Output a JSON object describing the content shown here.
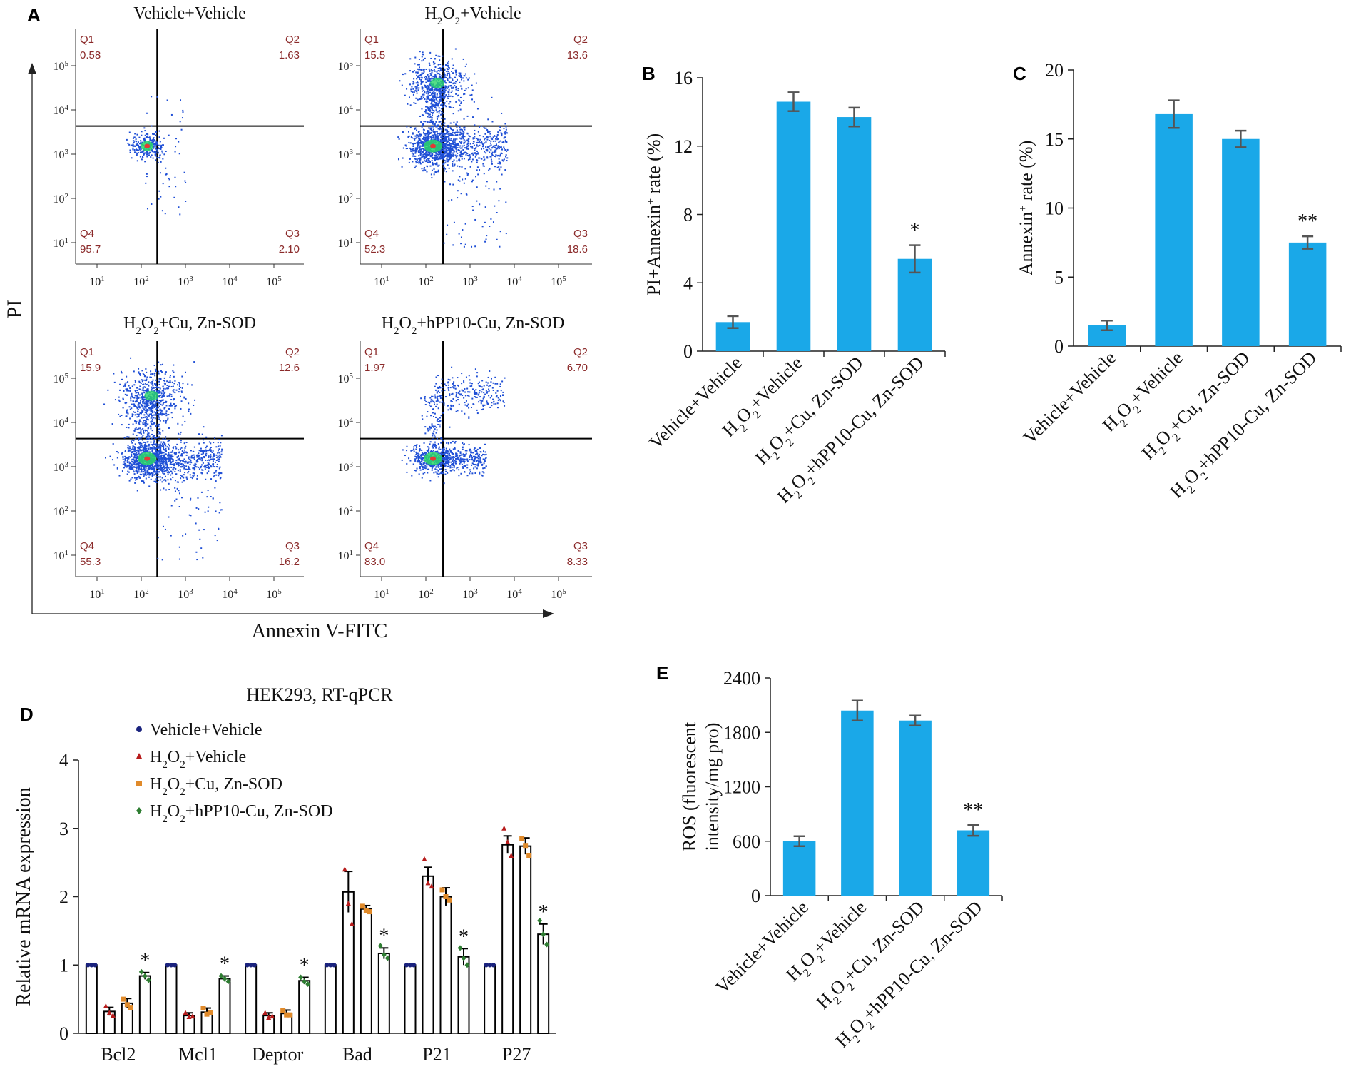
{
  "figure": {
    "panel_labels": [
      "A",
      "B",
      "C",
      "D",
      "E"
    ]
  },
  "colors": {
    "bar": "#1aa8e8",
    "error": "#555555",
    "quadrant_text": "#8b2a2a",
    "veh": "#1a237e",
    "h2o2": "#b71c1c",
    "cu": "#e08a2a",
    "hpp": "#2e7d32",
    "axis": "#222222"
  },
  "flow": {
    "ylabel": "PI",
    "xlabel": "Annexin V-FITC",
    "tick_labels": [
      "10",
      "10",
      "10",
      "10",
      "10"
    ],
    "tick_exponents": [
      "1",
      "2",
      "3",
      "4",
      "5"
    ],
    "quadrant_names": [
      "Q1",
      "Q2",
      "Q3",
      "Q4"
    ],
    "plots": [
      {
        "title_parts": [
          "Vehicle+Vehicle"
        ],
        "q1": "0.58",
        "q2": "1.63",
        "q3": "2.10",
        "q4": "95.7",
        "pattern": "low"
      },
      {
        "title_parts": [
          "H",
          "2",
          "O",
          "2",
          "+Vehicle"
        ],
        "q1": "15.5",
        "q2": "13.6",
        "q3": "18.6",
        "q4": "52.3",
        "pattern": "high"
      },
      {
        "title_parts": [
          "H",
          "2",
          "O",
          "2",
          "+Cu, Zn-SOD"
        ],
        "q1": "15.9",
        "q2": "12.6",
        "q3": "16.2",
        "q4": "55.3",
        "pattern": "high"
      },
      {
        "title_parts": [
          "H",
          "2",
          "O",
          "2",
          "+hPP10-Cu, Zn-SOD"
        ],
        "q1": "1.97",
        "q2": "6.70",
        "q3": "8.33",
        "q4": "83.0",
        "pattern": "mid"
      }
    ]
  },
  "group_labels": [
    [
      "Vehicle+Vehicle"
    ],
    [
      "H",
      "2",
      "O",
      "2",
      "+Vehicle"
    ],
    [
      "H",
      "2",
      "O",
      "2",
      "+Cu, Zn-SOD"
    ],
    [
      "H",
      "2",
      "O",
      "2",
      "+hPP10-Cu, Zn-SOD"
    ]
  ],
  "chart_data": [
    {
      "panel": "B",
      "type": "bar",
      "categories": [
        "Vehicle+Vehicle",
        "H2O2+Vehicle",
        "H2O2+Cu, Zn-SOD",
        "H2O2+hPP10-Cu, Zn-SOD"
      ],
      "values": [
        1.7,
        14.6,
        13.7,
        5.4
      ],
      "errors": [
        0.35,
        0.55,
        0.55,
        0.8
      ],
      "annotations": [
        "",
        "",
        "",
        "*"
      ],
      "ylabel_parts": [
        "PI+Annexin",
        "+",
        " rate (%)"
      ],
      "ylim": [
        0,
        16
      ],
      "yticks": [
        0,
        4,
        8,
        12,
        16
      ]
    },
    {
      "panel": "C",
      "type": "bar",
      "categories": [
        "Vehicle+Vehicle",
        "H2O2+Vehicle",
        "H2O2+Cu, Zn-SOD",
        "H2O2+hPP10-Cu, Zn-SOD"
      ],
      "values": [
        1.5,
        16.8,
        15.0,
        7.5
      ],
      "errors": [
        0.35,
        1.0,
        0.6,
        0.45
      ],
      "annotations": [
        "",
        "",
        "",
        "**"
      ],
      "ylabel_parts": [
        "Annexin",
        "+",
        " rate (%)"
      ],
      "ylim": [
        0,
        20
      ],
      "yticks": [
        0,
        5,
        10,
        15,
        20
      ]
    },
    {
      "panel": "D",
      "type": "bar",
      "title": "HEK293, RT-qPCR",
      "ylabel": "Relative mRNA expression",
      "ylim": [
        0,
        4
      ],
      "yticks": [
        0,
        1,
        2,
        3,
        4
      ],
      "categories": [
        "Bcl2",
        "Mcl1",
        "Deptor",
        "Bad",
        "P21",
        "P27"
      ],
      "legend": [
        {
          "parts": [
            "Vehicle+Vehicle"
          ]
        },
        {
          "parts": [
            "H",
            "2",
            "O",
            "2",
            "+Vehicle"
          ]
        },
        {
          "parts": [
            "H",
            "2",
            "O",
            "2",
            "+Cu, Zn-SOD"
          ]
        },
        {
          "parts": [
            "H",
            "2",
            "O",
            "2",
            "+hPP10-Cu, Zn-SOD"
          ]
        }
      ],
      "series": [
        {
          "values": [
            1.0,
            1.0,
            1.0,
            1.0,
            1.0,
            1.0
          ],
          "errors": [
            0,
            0,
            0,
            0,
            0,
            0
          ]
        },
        {
          "values": [
            0.32,
            0.26,
            0.26,
            2.07,
            2.3,
            2.76
          ],
          "errors": [
            0.06,
            0.04,
            0.04,
            0.3,
            0.13,
            0.13
          ]
        },
        {
          "values": [
            0.44,
            0.31,
            0.29,
            1.82,
            2.0,
            2.74
          ],
          "errors": [
            0.07,
            0.06,
            0.05,
            0.05,
            0.13,
            0.12
          ]
        },
        {
          "values": [
            0.84,
            0.8,
            0.77,
            1.17,
            1.12,
            1.45
          ],
          "errors": [
            0.05,
            0.04,
            0.05,
            0.08,
            0.12,
            0.15
          ]
        }
      ],
      "points": [
        [
          [
            1,
            1,
            1
          ],
          [
            1,
            1,
            1
          ],
          [
            1,
            1,
            1
          ],
          [
            1,
            1,
            1
          ],
          [
            1,
            1,
            1
          ],
          [
            1,
            1,
            1
          ]
        ],
        [
          [
            0.4,
            0.3,
            0.26
          ],
          [
            0.3,
            0.24,
            0.25
          ],
          [
            0.3,
            0.23,
            0.25
          ],
          [
            2.4,
            1.9,
            1.6
          ],
          [
            2.55,
            2.2,
            2.15
          ],
          [
            3.0,
            2.8,
            2.6
          ]
        ],
        [
          [
            0.5,
            0.42,
            0.38
          ],
          [
            0.37,
            0.28,
            0.3
          ],
          [
            0.33,
            0.27,
            0.27
          ],
          [
            1.86,
            1.8,
            1.78
          ],
          [
            2.1,
            2.0,
            1.95
          ],
          [
            2.85,
            2.75,
            2.6
          ]
        ],
        [
          [
            0.9,
            0.84,
            0.78
          ],
          [
            0.84,
            0.8,
            0.76
          ],
          [
            0.82,
            0.76,
            0.72
          ],
          [
            1.28,
            1.15,
            1.1
          ],
          [
            1.25,
            1.1,
            1.0
          ],
          [
            1.65,
            1.45,
            1.3
          ]
        ]
      ],
      "annotations": [
        "*",
        "*",
        "*",
        "*",
        "*",
        "*"
      ]
    },
    {
      "panel": "E",
      "type": "bar",
      "categories": [
        "Vehicle+Vehicle",
        "H2O2+Vehicle",
        "H2O2+Cu, Zn-SOD",
        "H2O2+hPP10-Cu, Zn-SOD"
      ],
      "values": [
        600,
        2040,
        1930,
        720
      ],
      "errors": [
        55,
        110,
        55,
        60
      ],
      "annotations": [
        "",
        "",
        "",
        "**"
      ],
      "ylabel_lines": [
        "ROS (fluorescent",
        "intensity/mg pro)"
      ],
      "ylim": [
        0,
        2400
      ],
      "yticks": [
        0,
        600,
        1200,
        1800,
        2400
      ]
    }
  ]
}
